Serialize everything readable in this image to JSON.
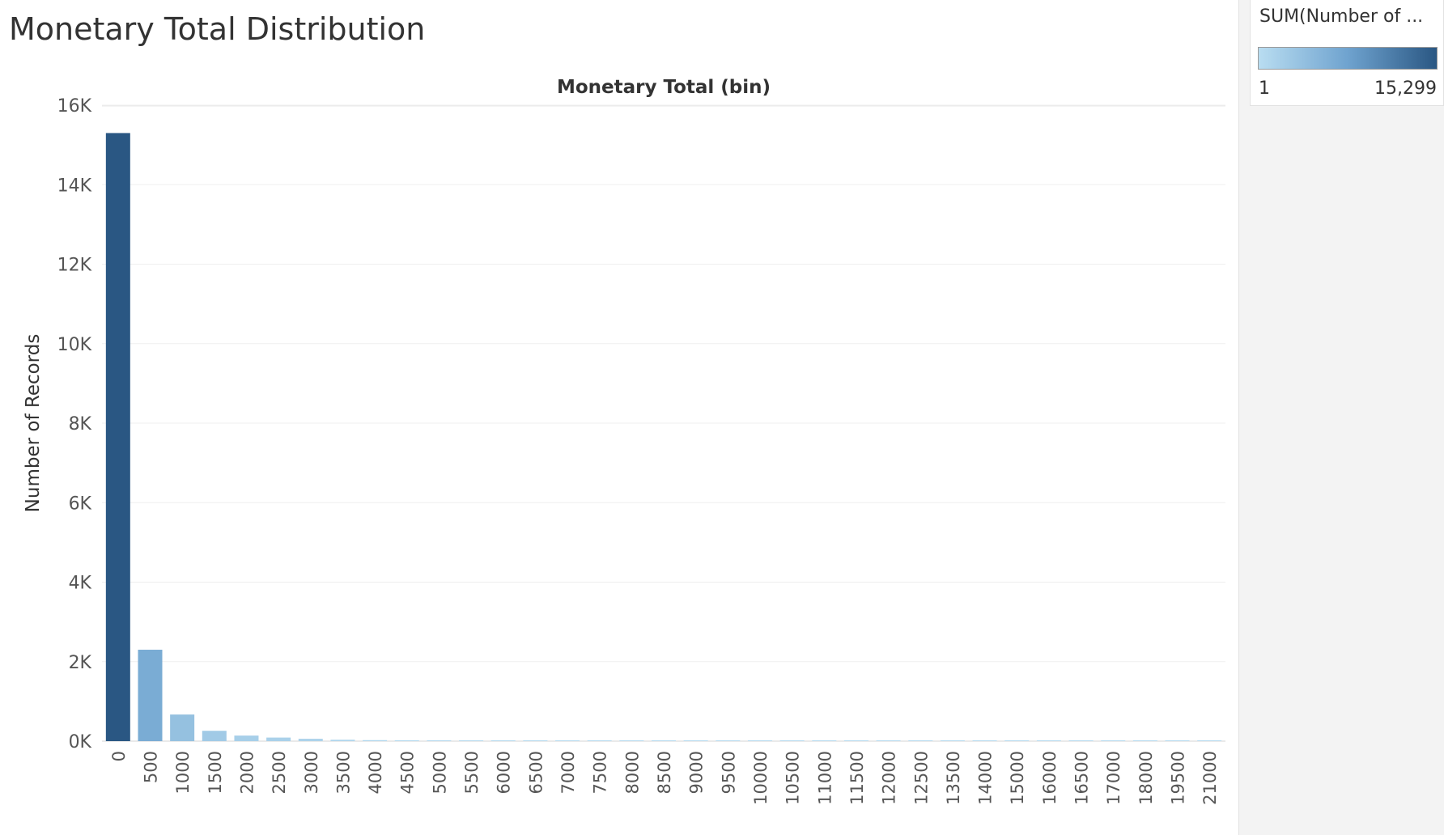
{
  "page": {
    "title": "Monetary Total Distribution"
  },
  "legend": {
    "title": "SUM(Number of ...",
    "min_label": "1",
    "max_label": "15,299",
    "color_low": "#b9ddf1",
    "color_high": "#2a5783"
  },
  "chart_data": {
    "type": "bar",
    "title": "Monetary Total (bin)",
    "xlabel": "Monetary Total (bin)",
    "ylabel": "Number of Records",
    "ylim": [
      0,
      16000
    ],
    "y_ticks": [
      0,
      2000,
      4000,
      6000,
      8000,
      10000,
      12000,
      14000,
      16000
    ],
    "y_tick_labels": [
      "0K",
      "2K",
      "4K",
      "6K",
      "8K",
      "10K",
      "12K",
      "14K",
      "16K"
    ],
    "grid": true,
    "categories": [
      "0",
      "500",
      "1000",
      "1500",
      "2000",
      "2500",
      "3000",
      "3500",
      "4000",
      "4500",
      "5000",
      "5500",
      "6000",
      "6500",
      "7000",
      "7500",
      "8000",
      "8500",
      "9000",
      "9500",
      "10000",
      "10500",
      "11000",
      "11500",
      "12000",
      "12500",
      "13500",
      "14000",
      "15000",
      "16000",
      "16500",
      "17000",
      "18000",
      "19500",
      "21000"
    ],
    "values": [
      15299,
      2300,
      670,
      260,
      140,
      90,
      60,
      35,
      25,
      15,
      8,
      6,
      5,
      4,
      3,
      2,
      2,
      2,
      2,
      1,
      1,
      1,
      1,
      1,
      1,
      1,
      1,
      1,
      1,
      1,
      1,
      1,
      1,
      1,
      1
    ]
  }
}
